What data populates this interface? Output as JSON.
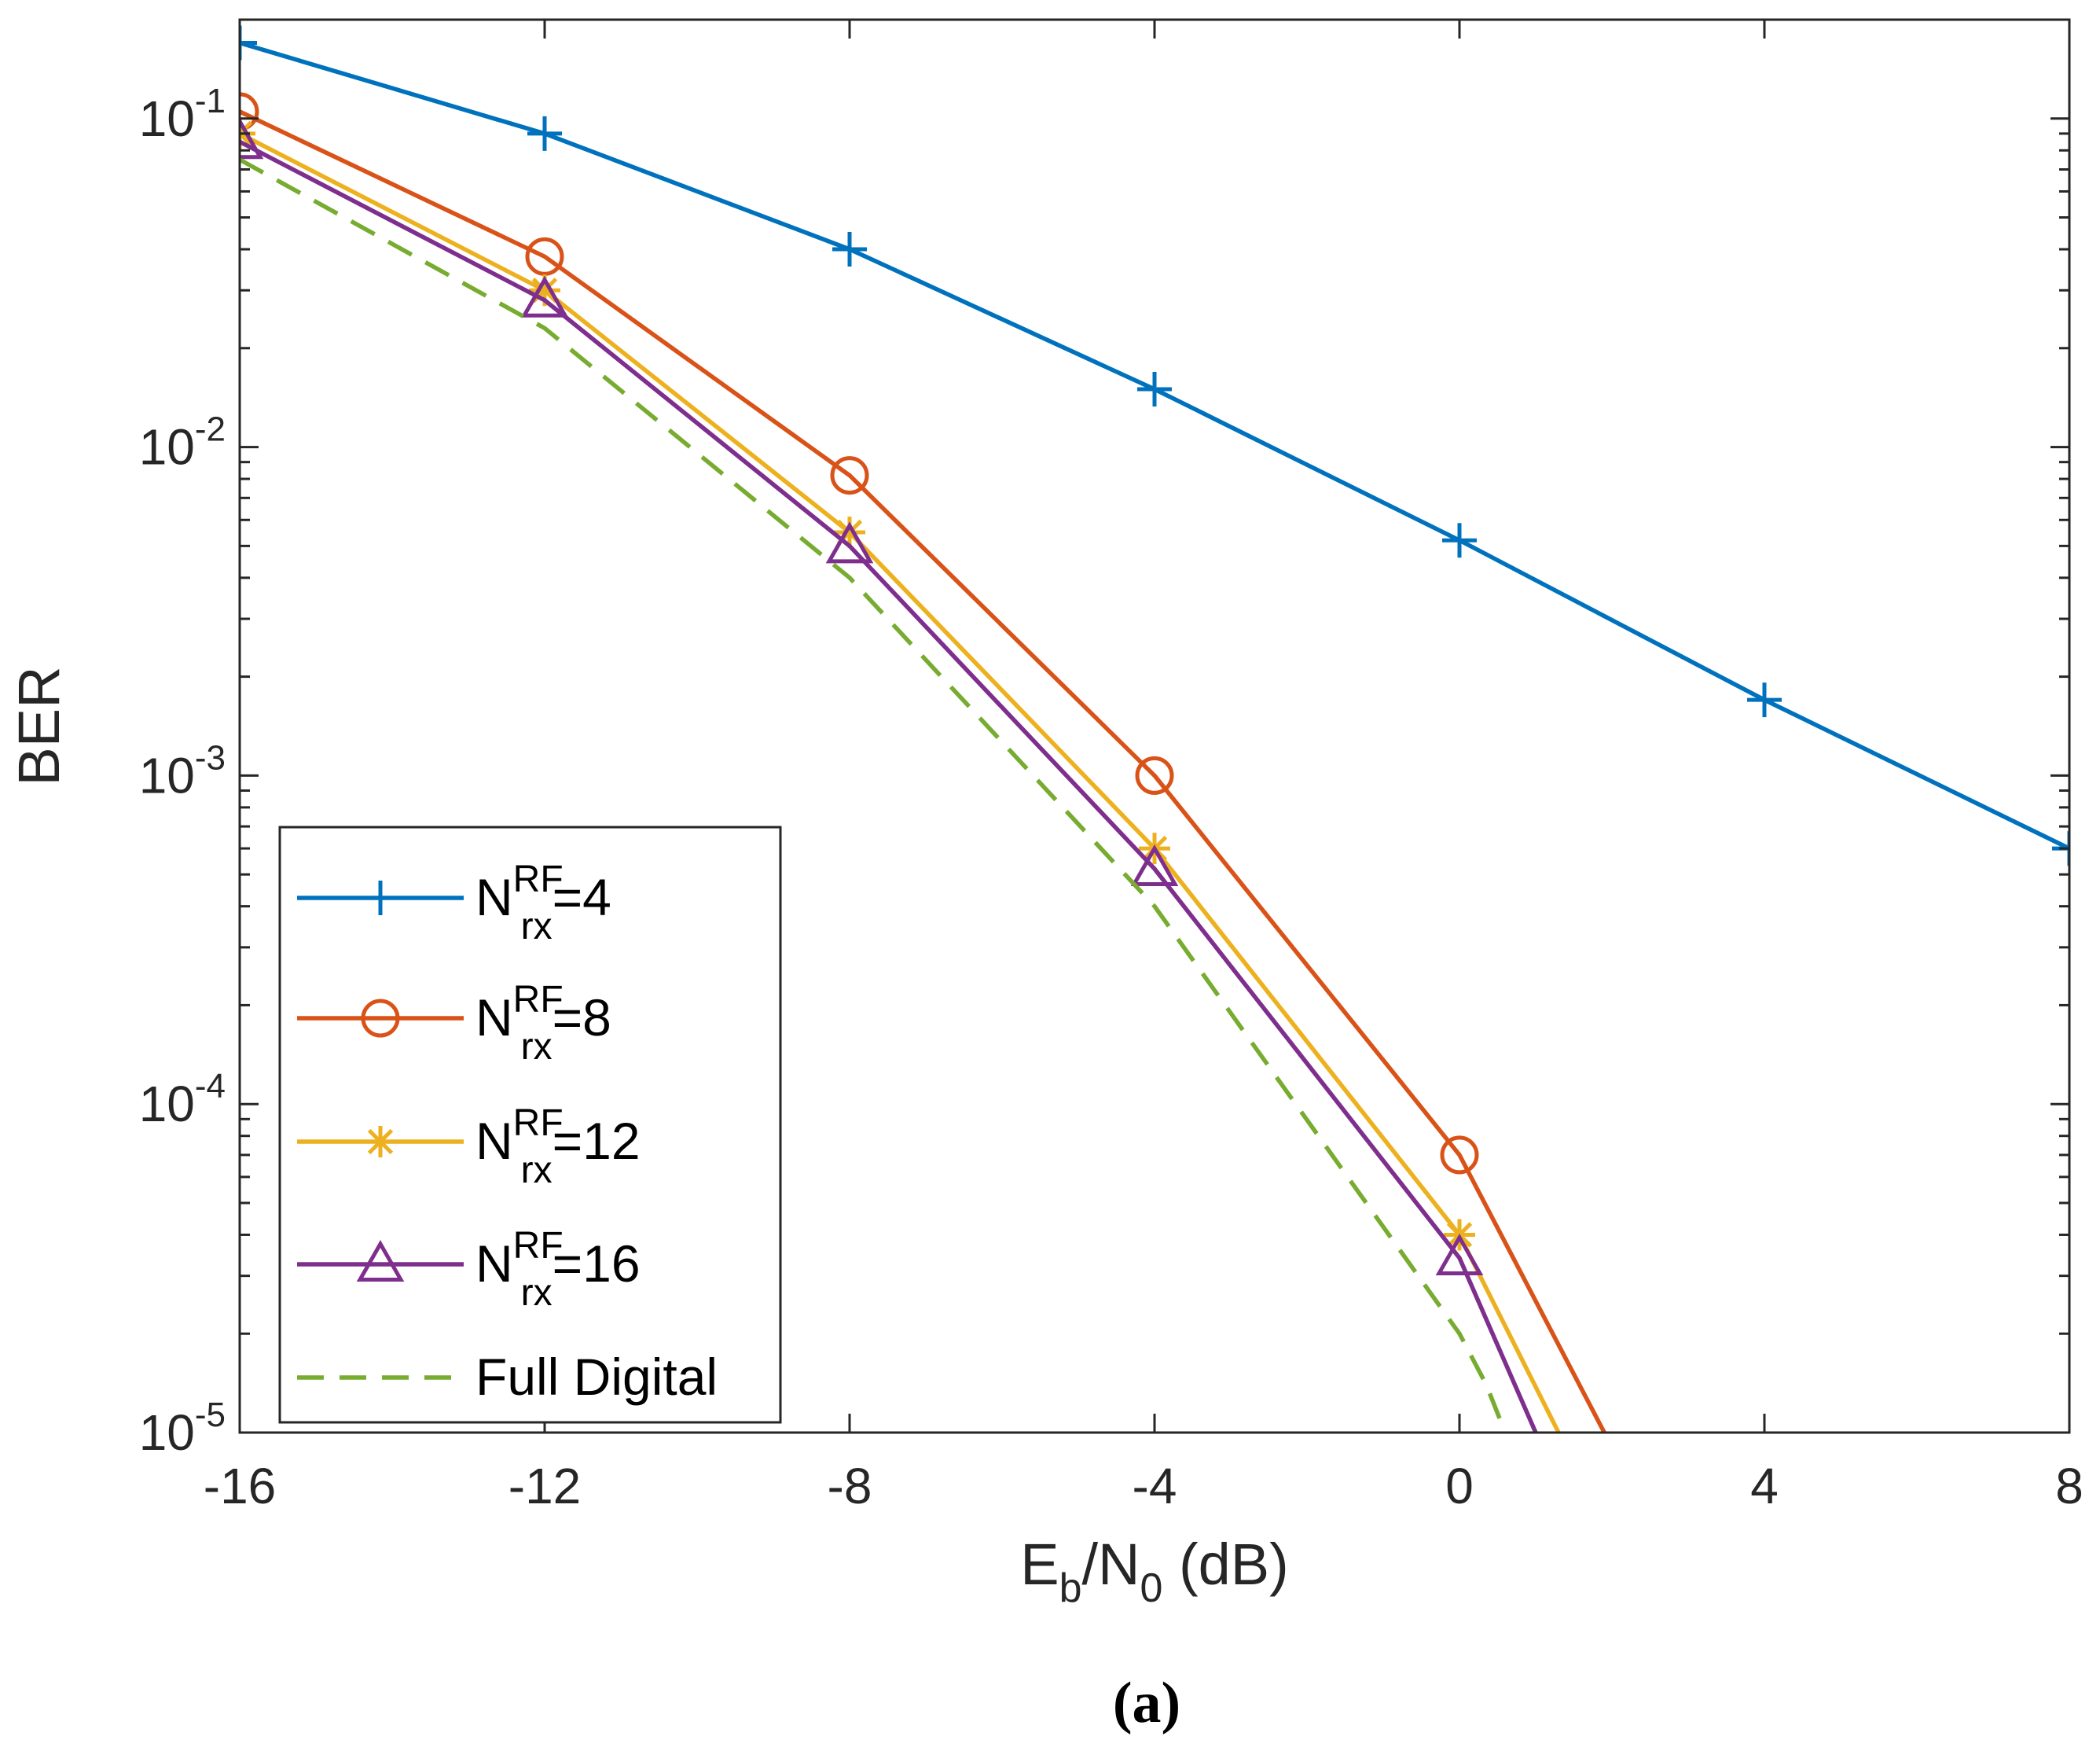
{
  "chart_data": {
    "type": "line",
    "xscale": "linear",
    "yscale": "log",
    "xlabel": {
      "main": "E",
      "sub1": "b",
      "mid": "/N",
      "sub2": "0",
      "tail": " (dB)"
    },
    "ylabel": "BER",
    "xlim": [
      -16,
      8
    ],
    "ylim": [
      1e-05,
      0.2
    ],
    "xticks": [
      -16,
      -12,
      -8,
      -4,
      0,
      4,
      8
    ],
    "xtick_labels": [
      "-16",
      "-12",
      "-8",
      "-4",
      "0",
      "4",
      "8"
    ],
    "yticks": [
      {
        "value": 0.1,
        "base": "10",
        "exp": "-1"
      },
      {
        "value": 0.01,
        "base": "10",
        "exp": "-2"
      },
      {
        "value": 0.001,
        "base": "10",
        "exp": "-3"
      },
      {
        "value": 0.0001,
        "base": "10",
        "exp": "-4"
      },
      {
        "value": 1e-05,
        "base": "10",
        "exp": "-5"
      }
    ],
    "grid": false,
    "legend_position": "bottom-left",
    "series": [
      {
        "name": "N_rx^RF=4",
        "label": {
          "main": "N",
          "sup": "RF",
          "sub": "rx",
          "tail": "=4"
        },
        "color": "#0072BD",
        "marker": "plus",
        "dash": "solid",
        "x": [
          -16,
          -12,
          -8,
          -4,
          0,
          4,
          8
        ],
        "y": [
          0.17,
          0.09,
          0.04,
          0.015,
          0.0052,
          0.0017,
          0.0006
        ]
      },
      {
        "name": "N_rx^RF=8",
        "label": {
          "main": "N",
          "sup": "RF",
          "sub": "rx",
          "tail": "=8"
        },
        "color": "#D95319",
        "marker": "circle",
        "dash": "solid",
        "x": [
          -16,
          -12,
          -8,
          -4,
          0,
          1.9
        ],
        "y": [
          0.105,
          0.038,
          0.0082,
          0.001,
          7e-05,
          1e-05
        ]
      },
      {
        "name": "N_rx^RF=12",
        "label": {
          "main": "N",
          "sup": "RF",
          "sub": "rx",
          "tail": "=12"
        },
        "color": "#EDB120",
        "marker": "asterisk",
        "dash": "solid",
        "x": [
          -16,
          -12,
          -8,
          -4,
          0,
          1.3
        ],
        "y": [
          0.09,
          0.03,
          0.0055,
          0.0006,
          4e-05,
          1e-05
        ]
      },
      {
        "name": "N_rx^RF=16",
        "label": {
          "main": "N",
          "sup": "RF",
          "sub": "rx",
          "tail": "=16"
        },
        "color": "#7E2F8E",
        "marker": "triangle",
        "dash": "solid",
        "x": [
          -16,
          -12,
          -8,
          -4,
          0,
          1.0
        ],
        "y": [
          0.085,
          0.028,
          0.005,
          0.00052,
          3.4e-05,
          1e-05
        ]
      },
      {
        "name": "Full Digital",
        "label": {
          "main": "Full Digital",
          "sup": "",
          "sub": "",
          "tail": ""
        },
        "color": "#77AC30",
        "marker": "none",
        "dash": "dashed",
        "x": [
          -16,
          -12,
          -8,
          -4,
          0,
          0.35,
          0.6
        ],
        "y": [
          0.075,
          0.023,
          0.004,
          0.0004,
          2e-05,
          1.4e-05,
          1e-05
        ]
      }
    ],
    "caption": "(a)"
  }
}
